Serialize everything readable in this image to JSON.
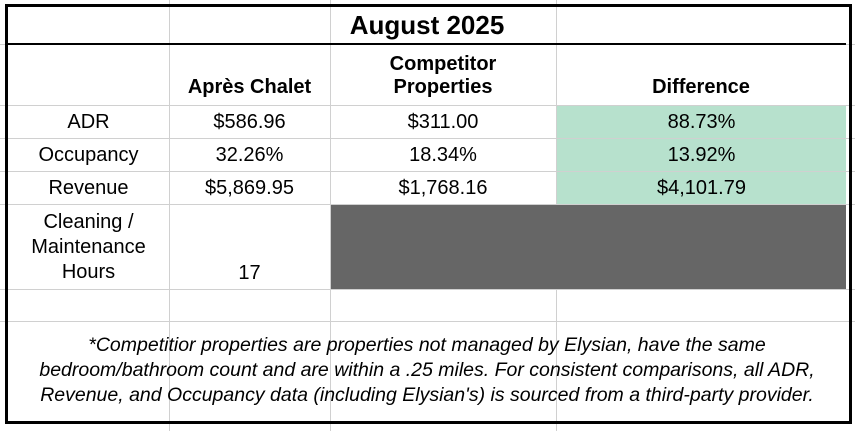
{
  "table": {
    "title": "August 2025",
    "headers": {
      "col1": "Après Chalet",
      "col2": "Competitor Properties",
      "col3": "Difference"
    },
    "rows": [
      {
        "label": "ADR",
        "apres": "$586.96",
        "competitor": "$311.00",
        "difference": "88.73%"
      },
      {
        "label": "Occupancy",
        "apres": "32.26%",
        "competitor": "18.34%",
        "difference": "13.92%"
      },
      {
        "label": "Revenue",
        "apres": "$5,869.95",
        "competitor": "$1,768.16",
        "difference": "$4,101.79"
      }
    ],
    "cleaning": {
      "label": "Cleaning / Maintenance Hours",
      "value": "17"
    },
    "footnote": "*Competitior properties are properties not managed by Elysian, have the same bedroom/bathroom count and are within a .25 miles. For consistent comparisons, all ADR, Revenue, and Occupancy data (including Elysian's) is sourced from a third-party provider."
  },
  "colors": {
    "difference_fill": "#b7e1cd",
    "blocked_fill": "#666666",
    "border": "#000000",
    "gridline": "#d0d0d0"
  }
}
